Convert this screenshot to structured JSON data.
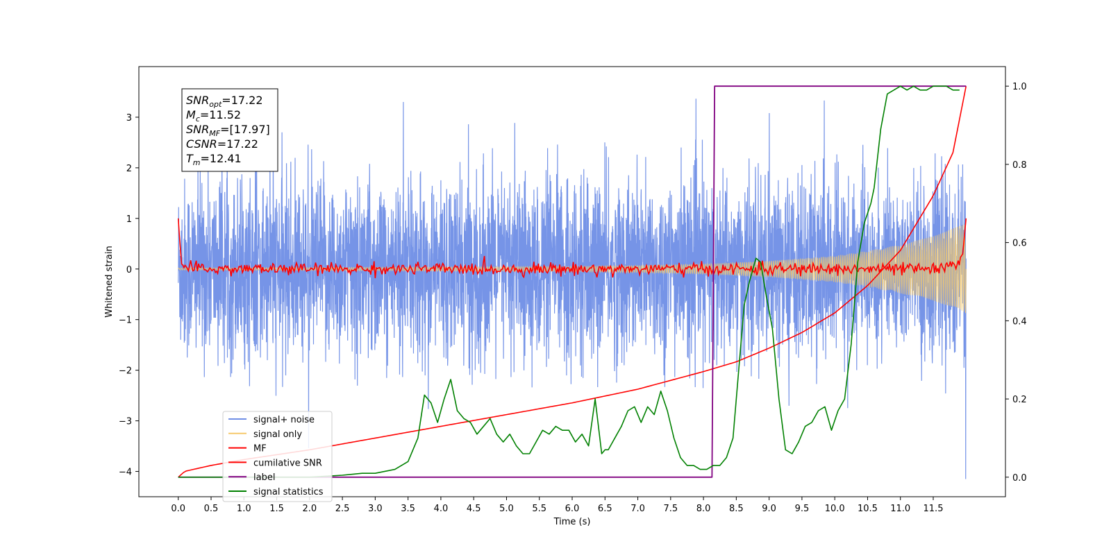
{
  "chart_data": {
    "type": "line",
    "xlabel": "Time (s)",
    "ylabel_left": "Whitened strain",
    "ylabel_right": "",
    "xlim": [
      -0.6,
      12.6
    ],
    "ylim_left": [
      -4.5,
      4.0
    ],
    "ylim_right": [
      -0.05,
      1.05
    ],
    "x_ticks": [
      0.0,
      0.5,
      1.0,
      1.5,
      2.0,
      2.5,
      3.0,
      3.5,
      4.0,
      4.5,
      5.0,
      5.5,
      6.0,
      6.5,
      7.0,
      7.5,
      8.0,
      8.5,
      9.0,
      9.5,
      10.0,
      10.5,
      11.0,
      11.5
    ],
    "y_ticks_left": [
      3,
      2,
      1,
      0,
      -1,
      -2,
      -3,
      -4
    ],
    "y_ticks_right": [
      1.0,
      0.8,
      0.6,
      0.4,
      0.2,
      0.0
    ],
    "grid": false,
    "legend_position": "lower-left",
    "info_box": {
      "lines": [
        {
          "base": "SNR",
          "sub": "opt",
          "value": "=17.22"
        },
        {
          "base": "M",
          "sub": "c",
          "value": "=11.52"
        },
        {
          "base": "SNR",
          "sub": "MF",
          "value": "=[17.97]"
        },
        {
          "base": "CSNR",
          "sub": "",
          "value": "=17.22"
        },
        {
          "base": "T",
          "sub": "m",
          "value": "=12.41"
        }
      ]
    },
    "series": [
      {
        "name": "signal+ noise",
        "color": "#6f8ee6",
        "axis": "left",
        "kind": "noise",
        "envelope_x": [
          0,
          1,
          2,
          3,
          4,
          5,
          6,
          7,
          8,
          9,
          10,
          11,
          12
        ],
        "envelope_amplitude": [
          1.6,
          1.6,
          1.6,
          1.6,
          1.6,
          1.6,
          1.6,
          1.6,
          1.6,
          1.6,
          1.6,
          1.6,
          1.6
        ],
        "peak_spikes": [
          3.3,
          -4.15
        ]
      },
      {
        "name": "signal only",
        "color": "#f5c96b",
        "axis": "left",
        "kind": "chirp",
        "envelope_x": [
          0,
          2,
          4,
          6,
          7,
          8,
          9,
          10,
          10.5,
          11,
          11.5,
          12
        ],
        "envelope_amplitude": [
          0.02,
          0.03,
          0.04,
          0.05,
          0.07,
          0.1,
          0.16,
          0.26,
          0.36,
          0.48,
          0.65,
          0.9
        ]
      },
      {
        "name": "MF",
        "color": "#ff0000",
        "axis": "left",
        "kind": "mf",
        "x": [
          0.0,
          0.02,
          0.05,
          0.1,
          0.2,
          11.7,
          11.85,
          11.95,
          12.0
        ],
        "y": [
          1.0,
          0.6,
          0.1,
          0.05,
          0.0,
          0.0,
          0.1,
          0.3,
          1.0
        ],
        "noise_amplitude": 0.06
      },
      {
        "name": "cumilative SNR",
        "color": "#ff0000",
        "axis": "right",
        "x": [
          0.0,
          0.1,
          0.5,
          1.0,
          2.0,
          3.0,
          4.0,
          5.0,
          6.0,
          7.0,
          8.0,
          8.5,
          9.0,
          9.5,
          10.0,
          10.5,
          11.0,
          11.5,
          11.8,
          12.0
        ],
        "y": [
          0.0,
          0.015,
          0.03,
          0.045,
          0.07,
          0.1,
          0.13,
          0.16,
          0.19,
          0.225,
          0.27,
          0.295,
          0.33,
          0.37,
          0.42,
          0.49,
          0.58,
          0.72,
          0.83,
          1.0
        ]
      },
      {
        "name": "label",
        "color": "#800080",
        "axis": "right",
        "x": [
          0.0,
          8.13,
          8.17,
          12.0
        ],
        "y": [
          0.0,
          0.0,
          1.0,
          1.0
        ]
      },
      {
        "name": "signal statistics",
        "color": "#008000",
        "axis": "right",
        "x": [
          0.0,
          1.0,
          2.0,
          2.5,
          2.8,
          3.0,
          3.3,
          3.5,
          3.65,
          3.75,
          3.85,
          3.95,
          4.05,
          4.15,
          4.25,
          4.35,
          4.45,
          4.55,
          4.65,
          4.75,
          4.85,
          4.95,
          5.05,
          5.15,
          5.25,
          5.35,
          5.45,
          5.55,
          5.65,
          5.75,
          5.85,
          5.95,
          6.05,
          6.15,
          6.25,
          6.35,
          6.45,
          6.5,
          6.55,
          6.65,
          6.75,
          6.85,
          6.95,
          7.05,
          7.15,
          7.25,
          7.35,
          7.45,
          7.55,
          7.65,
          7.75,
          7.85,
          7.95,
          8.05,
          8.15,
          8.25,
          8.35,
          8.45,
          8.55,
          8.62,
          8.7,
          8.8,
          8.87,
          8.95,
          9.05,
          9.15,
          9.25,
          9.35,
          9.45,
          9.55,
          9.65,
          9.75,
          9.85,
          9.95,
          10.05,
          10.15,
          10.25,
          10.35,
          10.45,
          10.55,
          10.6,
          10.7,
          10.8,
          10.9,
          11.0,
          11.1,
          11.2,
          11.3,
          11.4,
          11.5,
          11.6,
          11.7,
          11.8,
          11.9
        ],
        "y": [
          0.0,
          0.0,
          0.0,
          0.005,
          0.01,
          0.01,
          0.02,
          0.04,
          0.1,
          0.21,
          0.19,
          0.14,
          0.2,
          0.25,
          0.17,
          0.15,
          0.14,
          0.11,
          0.13,
          0.15,
          0.11,
          0.09,
          0.11,
          0.08,
          0.06,
          0.06,
          0.09,
          0.12,
          0.11,
          0.13,
          0.12,
          0.12,
          0.09,
          0.11,
          0.08,
          0.2,
          0.06,
          0.07,
          0.07,
          0.1,
          0.13,
          0.17,
          0.18,
          0.14,
          0.18,
          0.16,
          0.22,
          0.17,
          0.1,
          0.05,
          0.03,
          0.03,
          0.02,
          0.02,
          0.03,
          0.03,
          0.05,
          0.1,
          0.3,
          0.44,
          0.5,
          0.56,
          0.55,
          0.47,
          0.38,
          0.2,
          0.07,
          0.06,
          0.09,
          0.13,
          0.14,
          0.17,
          0.18,
          0.12,
          0.17,
          0.2,
          0.34,
          0.55,
          0.65,
          0.7,
          0.74,
          0.89,
          0.98,
          0.99,
          1.0,
          0.99,
          1.0,
          0.99,
          0.99,
          1.0,
          1.0,
          1.0,
          0.99,
          0.99
        ]
      }
    ]
  }
}
